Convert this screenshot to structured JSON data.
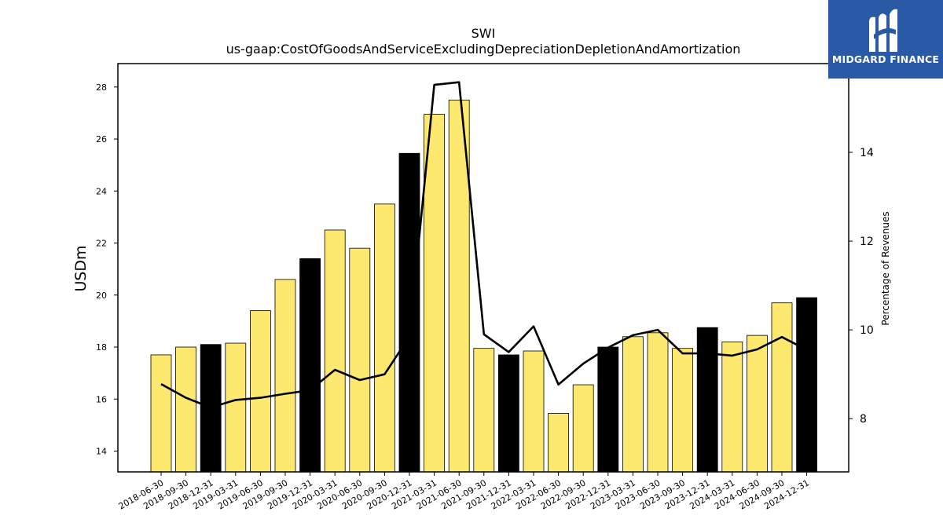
{
  "brand": {
    "name": "MIDGARD FINANCE",
    "background": "#2a5aa6",
    "icon": "midgard-logo-icon"
  },
  "chart_data": {
    "type": "bar",
    "title": "SWI",
    "subtitle": "us-gaap:CostOfGoodsAndServiceExcludingDepreciationDepletionAndAmortization",
    "ylabel": "USDm",
    "y2label": "Percentage of Revenues",
    "ylim": [
      13.2,
      28.9
    ],
    "y2lim": [
      6.8,
      16.0
    ],
    "yticks": [
      "14",
      "16",
      "18",
      "20",
      "22",
      "24",
      "26",
      "28"
    ],
    "y2ticks": [
      "8",
      "10",
      "12",
      "14"
    ],
    "categories": [
      "2018-06-30",
      "2018-09-30",
      "2018-12-31",
      "2019-03-31",
      "2019-06-30",
      "2019-09-30",
      "2019-12-31",
      "2020-03-31",
      "2020-06-30",
      "2020-09-30",
      "2020-12-31",
      "2021-03-31",
      "2021-06-30",
      "2021-09-30",
      "2021-12-31",
      "2022-03-31",
      "2022-06-30",
      "2022-09-30",
      "2022-12-31",
      "2023-03-31",
      "2023-06-30",
      "2023-09-30",
      "2023-12-31",
      "2024-03-31",
      "2024-06-30",
      "2024-09-30",
      "2024-12-31"
    ],
    "series": [
      {
        "type": "bar",
        "axis": "left",
        "values": [
          17.7,
          18.0,
          18.1,
          18.15,
          19.4,
          20.6,
          21.4,
          22.5,
          21.8,
          23.5,
          25.45,
          26.95,
          27.5,
          17.95,
          17.7,
          17.85,
          15.45,
          16.55,
          18.0,
          18.4,
          18.55,
          17.95,
          18.75,
          18.2,
          18.45,
          19.7,
          19.9
        ],
        "colors": {
          "quarter": "#fde96f",
          "year_end": "#000000"
        }
      },
      {
        "type": "line",
        "axis": "right",
        "color": "#000000",
        "values": [
          8.78,
          8.47,
          8.25,
          8.42,
          8.47,
          8.56,
          8.64,
          9.1,
          8.87,
          9.0,
          9.85,
          15.52,
          15.58,
          9.9,
          9.5,
          10.08,
          8.77,
          9.24,
          9.6,
          9.88,
          10.0,
          9.47,
          9.47,
          9.42,
          9.56,
          9.84,
          9.55
        ]
      }
    ],
    "grid": false,
    "legend": "none"
  }
}
